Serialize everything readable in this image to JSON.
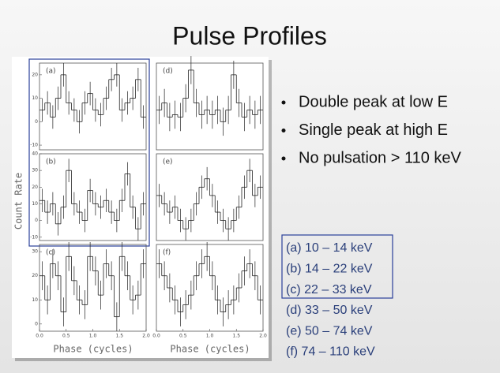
{
  "title": "Pulse Profiles",
  "bullets": [
    "Double peak at low E",
    "Single peak at high E",
    "No pulsation > 110 keV"
  ],
  "bands": [
    "(a) 10 – 14 keV",
    "(b) 14 – 22 keV",
    "(c) 22 – 33 keV",
    "(d) 33 – 50 keV",
    "(e) 50 – 74 keV",
    "(f) 74 – 110 keV"
  ],
  "y_label": "Count Rate",
  "x_label": "Phase (cycles)",
  "chart_data": [
    {
      "type": "histogram",
      "label": "(a)",
      "bins": [
        0,
        0.1,
        0.2,
        0.3,
        0.4,
        0.5,
        0.6,
        0.7,
        0.8,
        0.9,
        1,
        1.1,
        1.2,
        1.3,
        1.4,
        1.5,
        1.6,
        1.7,
        1.8,
        1.9,
        2
      ],
      "values": [
        5,
        8,
        2,
        10,
        20,
        8,
        5,
        0,
        8,
        12,
        5,
        3,
        10,
        18,
        20,
        5,
        8,
        10,
        18,
        2
      ],
      "errors": [
        5,
        5,
        5,
        5,
        5,
        5,
        5,
        5,
        5,
        5,
        5,
        5,
        5,
        5,
        5,
        5,
        5,
        5,
        5,
        5
      ],
      "xlim": [
        0,
        2
      ],
      "ylim": [
        -12,
        25
      ],
      "yticks": [
        -10,
        0,
        10,
        20
      ]
    },
    {
      "type": "histogram",
      "label": "(d)",
      "bins": [
        0,
        0.1,
        0.2,
        0.3,
        0.4,
        0.5,
        0.6,
        0.7,
        0.8,
        0.9,
        1,
        1.1,
        1.2,
        1.3,
        1.4,
        1.5,
        1.6,
        1.7,
        1.8,
        1.9,
        2
      ],
      "values": [
        5,
        8,
        2,
        3,
        2,
        10,
        22,
        8,
        3,
        5,
        3,
        5,
        0,
        5,
        20,
        8,
        2,
        5,
        3,
        5
      ],
      "errors": [
        6,
        6,
        6,
        6,
        6,
        6,
        6,
        6,
        6,
        6,
        6,
        6,
        6,
        6,
        6,
        6,
        6,
        6,
        6,
        6
      ],
      "xlim": [
        0,
        2
      ],
      "ylim": [
        -12,
        25
      ]
    },
    {
      "type": "histogram",
      "label": "(b)",
      "bins": [
        0,
        0.1,
        0.2,
        0.3,
        0.4,
        0.5,
        0.6,
        0.7,
        0.8,
        0.9,
        1,
        1.1,
        1.2,
        1.3,
        1.4,
        1.5,
        1.6,
        1.7,
        1.8,
        1.9,
        2
      ],
      "values": [
        12,
        5,
        10,
        -2,
        8,
        30,
        10,
        5,
        0,
        18,
        10,
        8,
        12,
        5,
        0,
        12,
        28,
        8,
        -5,
        10
      ],
      "errors": [
        7,
        7,
        7,
        7,
        7,
        7,
        7,
        7,
        7,
        7,
        7,
        7,
        7,
        7,
        7,
        7,
        7,
        7,
        7,
        7
      ],
      "xlim": [
        0,
        2
      ],
      "ylim": [
        -12,
        40
      ],
      "yticks": [
        -10,
        0,
        10,
        20,
        30,
        40
      ]
    },
    {
      "type": "histogram",
      "label": "(e)",
      "bins": [
        0,
        0.1,
        0.2,
        0.3,
        0.4,
        0.5,
        0.6,
        0.7,
        0.8,
        0.9,
        1,
        1.1,
        1.2,
        1.3,
        1.4,
        1.5,
        1.6,
        1.7,
        1.8,
        1.9,
        2
      ],
      "values": [
        15,
        10,
        5,
        8,
        0,
        -5,
        0,
        10,
        20,
        25,
        15,
        5,
        0,
        -5,
        0,
        8,
        20,
        30,
        15,
        20
      ],
      "errors": [
        7,
        7,
        7,
        7,
        7,
        7,
        7,
        7,
        7,
        7,
        7,
        7,
        7,
        7,
        7,
        7,
        7,
        7,
        7,
        7
      ],
      "xlim": [
        0,
        2
      ],
      "ylim": [
        -12,
        40
      ]
    },
    {
      "type": "histogram",
      "label": "(c)",
      "bins": [
        0,
        0.1,
        0.2,
        0.3,
        0.4,
        0.5,
        0.6,
        0.7,
        0.8,
        0.9,
        1,
        1.1,
        1.2,
        1.3,
        1.4,
        1.5,
        1.6,
        1.7,
        1.8,
        1.9,
        2
      ],
      "values": [
        20,
        10,
        25,
        20,
        5,
        28,
        18,
        10,
        8,
        28,
        22,
        12,
        25,
        20,
        3,
        28,
        20,
        10,
        12,
        25
      ],
      "errors": [
        6,
        6,
        6,
        6,
        6,
        6,
        6,
        6,
        6,
        6,
        6,
        6,
        6,
        6,
        6,
        6,
        6,
        6,
        6,
        6
      ],
      "xlim": [
        0,
        2
      ],
      "ylim": [
        -3,
        33
      ],
      "yticks": [
        0,
        10,
        20,
        30
      ],
      "xticks": [
        {
          "value": 0,
          "label": "0.0"
        },
        {
          "value": 0.5,
          "label": "0.5"
        },
        {
          "value": 1,
          "label": "1.0"
        },
        {
          "value": 1.5,
          "label": "1.5"
        },
        {
          "value": 2,
          "label": "2.0"
        }
      ]
    },
    {
      "type": "histogram",
      "label": "(f)",
      "bins": [
        0,
        0.1,
        0.2,
        0.3,
        0.4,
        0.5,
        0.6,
        0.7,
        0.8,
        0.9,
        1,
        1.1,
        1.2,
        1.3,
        1.4,
        1.5,
        1.6,
        1.7,
        1.8,
        1.9,
        2
      ],
      "values": [
        25,
        20,
        15,
        10,
        5,
        8,
        12,
        20,
        25,
        28,
        20,
        10,
        5,
        8,
        10,
        15,
        22,
        25,
        20,
        10
      ],
      "errors": [
        6,
        6,
        6,
        6,
        6,
        6,
        6,
        6,
        6,
        6,
        6,
        6,
        6,
        6,
        6,
        6,
        6,
        6,
        6,
        6
      ],
      "xlim": [
        0,
        2
      ],
      "ylim": [
        -3,
        33
      ],
      "xticks": [
        {
          "value": 0,
          "label": "0.0"
        },
        {
          "value": 0.5,
          "label": "0.5"
        },
        {
          "value": 1,
          "label": "1.0"
        },
        {
          "value": 1.5,
          "label": "1.5"
        },
        {
          "value": 2,
          "label": "2.0"
        }
      ]
    }
  ]
}
